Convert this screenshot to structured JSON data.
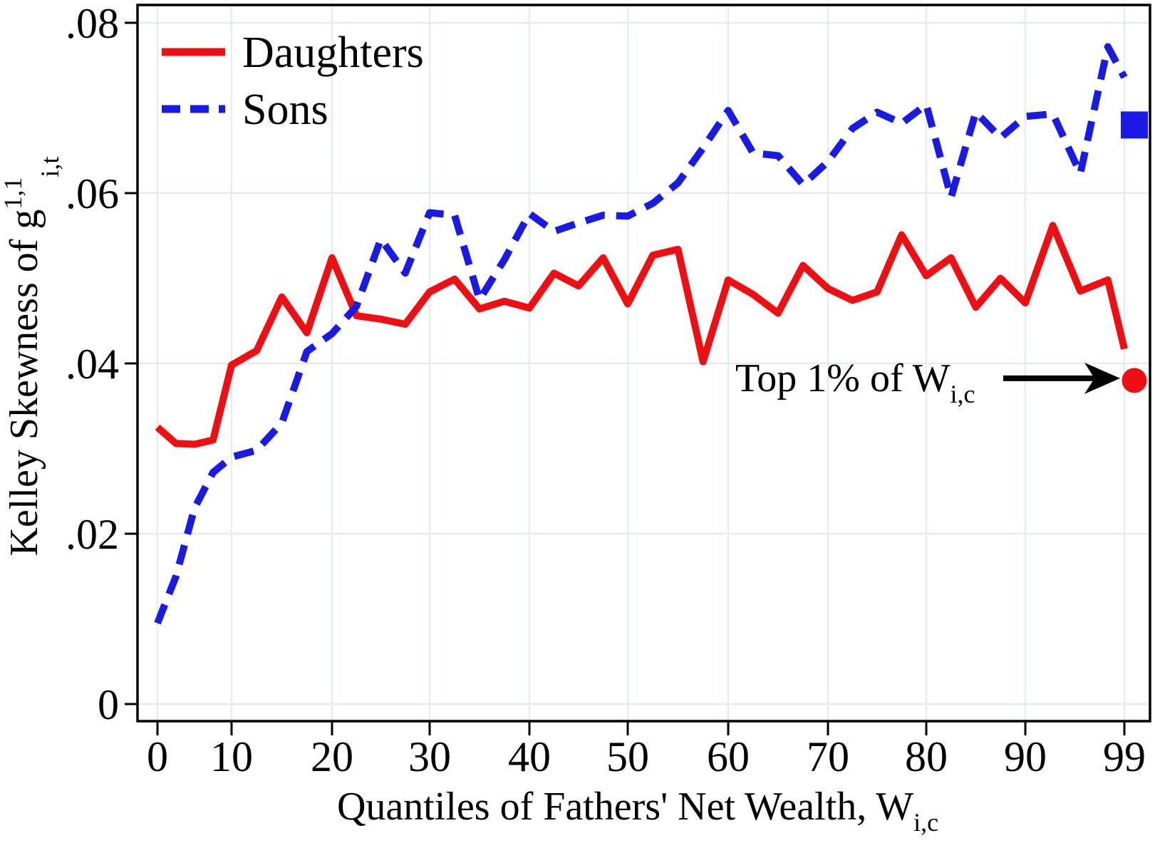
{
  "chart_data": {
    "type": "line",
    "title": "",
    "xlabel": {
      "prefix": "Quantiles of Fathers' Net Wealth, W",
      "subscript": "i,c"
    },
    "ylabel": {
      "prefix": "Kelley Skewness of g",
      "superscript": "1,1",
      "subscript": "i,t"
    },
    "xlim": [
      -2,
      102
    ],
    "ylim": [
      -0.002,
      0.082
    ],
    "grid": true,
    "legend_position": "top-left",
    "xticks": [
      {
        "value": 0,
        "label": "0"
      },
      {
        "value": 10,
        "label": "10"
      },
      {
        "value": 20,
        "label": "20"
      },
      {
        "value": 30,
        "label": "30"
      },
      {
        "value": 40,
        "label": "40"
      },
      {
        "value": 50,
        "label": "50"
      },
      {
        "value": 60,
        "label": "60"
      },
      {
        "value": 70,
        "label": "70"
      },
      {
        "value": 80,
        "label": "80"
      },
      {
        "value": 90,
        "label": "90"
      },
      {
        "value": 99,
        "label": "99"
      }
    ],
    "yticks": [
      {
        "value": 0.0,
        "label": "0"
      },
      {
        "value": 0.02,
        "label": ".02"
      },
      {
        "value": 0.04,
        "label": ".04"
      },
      {
        "value": 0.06,
        "label": ".06"
      },
      {
        "value": 0.08,
        "label": ".08"
      }
    ],
    "x": [
      0,
      2.5,
      5,
      7.5,
      10,
      12.5,
      15,
      17.5,
      20,
      22.5,
      25,
      27.5,
      30,
      32.5,
      35,
      37.5,
      40,
      42.5,
      45,
      47.5,
      50,
      52.5,
      55,
      57.5,
      60,
      62.5,
      65,
      67.5,
      70,
      72.5,
      75,
      77.5,
      80,
      82.5,
      85,
      87.5,
      90,
      92.5,
      95,
      97.5,
      99
    ],
    "series": [
      {
        "name": "Daughters",
        "color": "#ef0e11",
        "style": "solid",
        "values": [
          0.0325,
          0.0306,
          0.0305,
          0.031,
          0.0398,
          0.0415,
          0.0478,
          0.0436,
          0.0524,
          0.0456,
          0.0452,
          0.0446,
          0.0484,
          0.0499,
          0.0464,
          0.0473,
          0.0465,
          0.0506,
          0.0491,
          0.0524,
          0.047,
          0.0527,
          0.0534,
          0.0402,
          0.0498,
          0.0481,
          0.0459,
          0.0515,
          0.0488,
          0.0474,
          0.0484,
          0.0551,
          0.0503,
          0.0524,
          0.0466,
          0.05,
          0.0471,
          0.0562,
          0.0485,
          0.0498,
          0.0417
        ]
      },
      {
        "name": "Sons",
        "color": "#1a1ae6",
        "style": "dashed",
        "values": [
          0.0095,
          0.015,
          0.023,
          0.0272,
          0.029,
          0.0298,
          0.033,
          0.0414,
          0.0435,
          0.0467,
          0.0546,
          0.0506,
          0.0577,
          0.0574,
          0.0475,
          0.0522,
          0.0576,
          0.0555,
          0.0565,
          0.0574,
          0.0573,
          0.0588,
          0.0612,
          0.0653,
          0.0697,
          0.0647,
          0.0644,
          0.061,
          0.0637,
          0.0676,
          0.0695,
          0.0682,
          0.0704,
          0.0595,
          0.0695,
          0.0665,
          0.069,
          0.0693,
          0.0623,
          0.0772,
          0.0736
        ]
      }
    ],
    "top1_markers": [
      {
        "series": "Daughters",
        "shape": "circle",
        "color": "#ef0e11",
        "value": 0.038
      },
      {
        "series": "Sons",
        "shape": "square",
        "color": "#1a1ae6",
        "value": 0.068
      }
    ],
    "annotation": {
      "text": "Top 1% of W",
      "subscript": "i,c",
      "points_to": "Daughters top 1% marker"
    },
    "legend": [
      "Daughters",
      "Sons"
    ],
    "colors": {
      "daughters": "#ef0e11",
      "sons": "#1a1ae6",
      "grid": "#e2ecef",
      "axis": "#000000"
    }
  }
}
